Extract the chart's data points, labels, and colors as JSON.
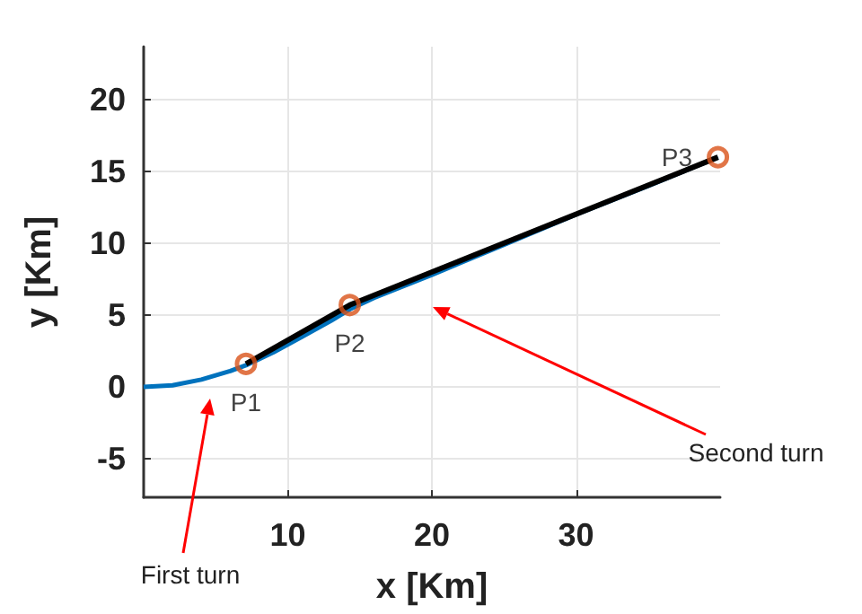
{
  "chart_data": {
    "type": "line",
    "xlabel": "x [Km]",
    "ylabel": "y [Km]",
    "xlim": [
      0,
      40
    ],
    "ylim": [
      -7.7,
      23.7
    ],
    "xticks": [
      10,
      20,
      30
    ],
    "yticks": [
      -5,
      0,
      5,
      10,
      15,
      20
    ],
    "grid": true,
    "series": [
      {
        "color": "#0072bd",
        "marker": "none",
        "x": [
          0,
          2,
          4,
          6,
          7.1,
          9,
          11,
          13,
          14.3,
          16,
          20,
          25,
          30,
          35,
          39.85
        ],
        "values": [
          0,
          0.1,
          0.5,
          1.1,
          1.5,
          2.4,
          3.5,
          4.6,
          5.4,
          6.2,
          7.8,
          9.9,
          12,
          14,
          16
        ]
      },
      {
        "color": "#000000",
        "marker": "none",
        "x": [
          7.1,
          14.3,
          39.85
        ],
        "values": [
          1.6,
          5.7,
          16.0
        ]
      },
      {
        "type": "scatter",
        "color": "#d95319",
        "marker": "circle",
        "x": [
          7.1,
          14.3,
          39.85
        ],
        "values": [
          1.6,
          5.7,
          16.0
        ],
        "value_labels": [
          "P1",
          "P2",
          "P3"
        ]
      }
    ],
    "annotations": [
      "First turn",
      "Second turn"
    ]
  }
}
